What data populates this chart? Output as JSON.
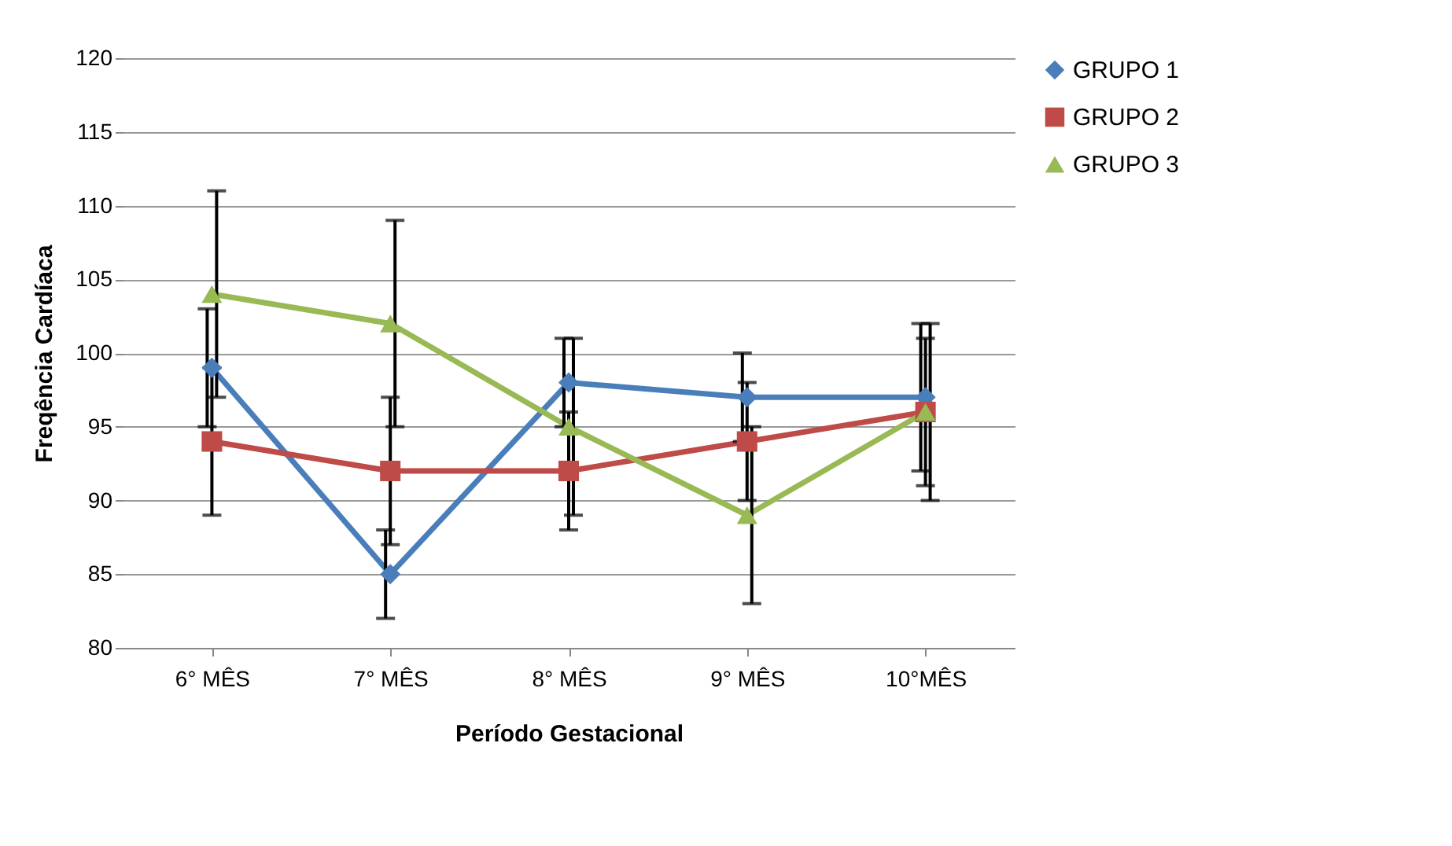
{
  "chart_data": {
    "type": "line",
    "xlabel": "Período Gestacional",
    "ylabel": "Freqência Cardíaca",
    "categories": [
      "6° MÊS",
      "7° MÊS",
      "8° MÊS",
      "9° MÊS",
      "10°MÊS"
    ],
    "series": [
      {
        "name": "GRUPO 1",
        "color": "#4a7ebb",
        "marker": "diamond",
        "values": [
          99,
          85,
          98,
          97,
          97
        ],
        "errors": [
          4,
          3,
          3,
          3,
          5
        ]
      },
      {
        "name": "GRUPO 2",
        "color": "#be4b48",
        "marker": "square",
        "values": [
          94,
          92,
          92,
          94,
          96
        ],
        "errors": [
          5,
          5,
          4,
          4,
          5
        ]
      },
      {
        "name": "GRUPO 3",
        "color": "#98b954",
        "marker": "triangle",
        "values": [
          104,
          102,
          95,
          89,
          96
        ],
        "errors": [
          7,
          7,
          6,
          6,
          6
        ]
      }
    ],
    "ylim": [
      80,
      120
    ],
    "yticks": [
      80,
      85,
      90,
      95,
      100,
      105,
      110,
      115,
      120
    ],
    "grid": "y",
    "legend": "right",
    "line_style": "solid"
  }
}
